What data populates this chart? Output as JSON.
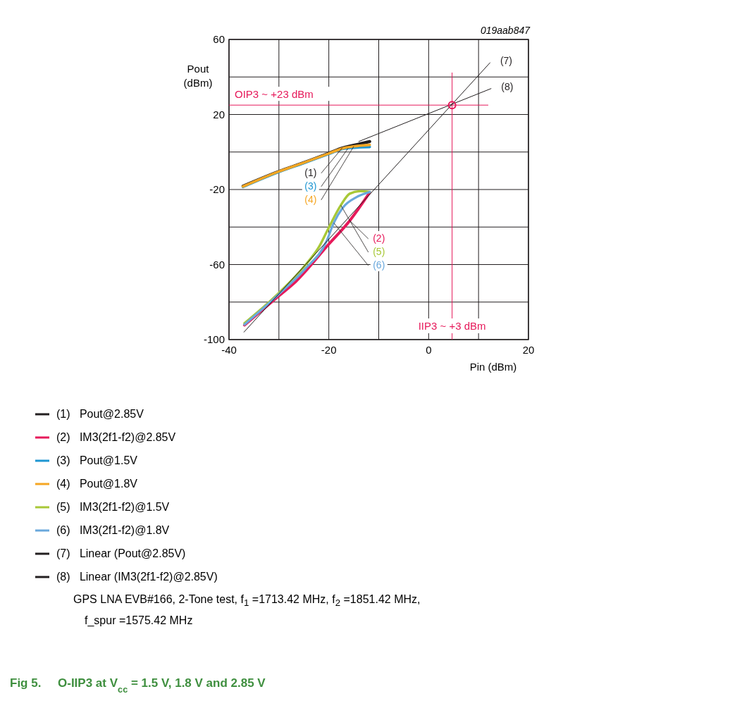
{
  "chart_data": {
    "type": "line",
    "title": "Fig 5.     O-IIP3 at V$_{cc}$ = 1.5 V, 1.8 V and 2.85 V",
    "xlabel": "Pin (dBm)",
    "ylabel": "Pout (dBm)",
    "xlim": [
      -40,
      20
    ],
    "xticks": [
      -40,
      {
        "value": -30,
        "label": null
      },
      -20,
      {
        "value": -10,
        "label": null
      },
      0,
      {
        "value": 10,
        "label": null
      },
      20
    ],
    "ylim": [
      -100,
      60
    ],
    "yticks": [
      -100,
      {
        "value": -80,
        "label": null
      },
      -60,
      {
        "value": -40,
        "label": null
      },
      -20,
      {
        "value": 0,
        "label": null
      },
      20,
      {
        "value": 40,
        "label": null
      },
      60
    ],
    "grid": true,
    "legend": "bottom",
    "marker": "none",
    "line_style": "solid",
    "series": [
      {
        "name": "(1) Pout@2.85V",
        "color": "#231f20",
        "x": [
          -37.2,
          -30,
          -25,
          -20,
          -17.3,
          -15,
          -11.8
        ],
        "values": [
          -18.2,
          -10.3,
          -5.6,
          -0.6,
          2.2,
          3.6,
          5.6
        ]
      },
      {
        "name": "(2) IM3(2f1-f2)@2.85V",
        "color": "#e6195a",
        "x": [
          -36.9,
          -30.1,
          -26.6,
          -20,
          -15.8,
          -11.8
        ],
        "values": [
          -92.3,
          -76.9,
          -69,
          -49.1,
          -36.6,
          -21.5
        ]
      },
      {
        "name": "(3) Pout@1.5V",
        "color": "#1e96d2",
        "x": [
          -37.2,
          -30,
          -25,
          -20,
          -17.3,
          -15,
          -11.8
        ],
        "values": [
          -18.6,
          -10.6,
          -5.9,
          -1.0,
          1.6,
          2.3,
          2.7
        ]
      },
      {
        "name": "(4) Pout@1.8V",
        "color": "#f5a623",
        "x": [
          -37.2,
          -30,
          -25,
          -20,
          -17.3,
          -15,
          -11.8
        ],
        "values": [
          -18.4,
          -10.4,
          -5.7,
          -0.8,
          1.9,
          3.0,
          3.8
        ]
      },
      {
        "name": "(5) IM3(2f1-f2)@1.5V",
        "color": "#a8c837",
        "x": [
          -36.9,
          -30.1,
          -24.7,
          -21.9,
          -20,
          -17.6,
          -15.8,
          -13.7,
          -11.8
        ],
        "values": [
          -91.3,
          -75.4,
          -60.3,
          -50.3,
          -40.3,
          -28.4,
          -22.2,
          -20.9,
          -21.3
        ]
      },
      {
        "name": "(6) IM3(2f1-f2)@1.8V",
        "color": "#6aa8dc",
        "x": [
          -36.9,
          -30.1,
          -24.7,
          -20.5,
          -19,
          -17.2,
          -14.4,
          -11.8
        ],
        "values": [
          -92,
          -76,
          -62.2,
          -47.8,
          -37.8,
          -29.7,
          -24,
          -21.3
        ]
      },
      {
        "name": "(7) Linear (Pout@2.85V)",
        "color": "#231f20",
        "x": [
          -37,
          12.3
        ],
        "values": [
          -96,
          47.6
        ]
      },
      {
        "name": "(8) Linear (IM3(2f1-f2)@2.85V)",
        "color": "#231f20",
        "x": [
          -14,
          12.5
        ],
        "values": [
          5.6,
          33.8
        ]
      },
      {
        "type": "scatter",
        "marker": "circle",
        "color": "#e6195a",
        "x": [
          4.7
        ],
        "values": [
          25
        ]
      }
    ],
    "ref_lines": [
      {
        "axis": "y",
        "value": 25,
        "label": "OIP3 ~ +23 dBm",
        "color": "#e6195a"
      },
      {
        "axis": "x",
        "value": 4.7,
        "label": "IIP3 ~ +3 dBm",
        "color": "#e6195a"
      }
    ],
    "annotations": [
      {
        "text": "(1)",
        "x": -17.3,
        "y": 2.2
      },
      {
        "text": "(2)",
        "x": -15.8,
        "y": -36.6
      },
      {
        "text": "(3)",
        "x": -16.15,
        "y": 1.95
      },
      {
        "text": "(4)",
        "x": -15,
        "y": 3.0
      },
      {
        "text": "(5)",
        "x": -17.6,
        "y": -28.4
      },
      {
        "text": "(6)",
        "x": -19,
        "y": -37.8
      },
      {
        "text": "(7)",
        "x": 12.3,
        "y": 47.6
      },
      {
        "text": "(8)",
        "x": 12.5,
        "y": 33.8
      },
      "019aab847",
      "GPS LNA EVB#166, 2-Tone test, f$_{1}$ =1713.42 MHz, f$_{2}$ =1851.42 MHz, f_spur =1575.42 MHz"
    ]
  }
}
